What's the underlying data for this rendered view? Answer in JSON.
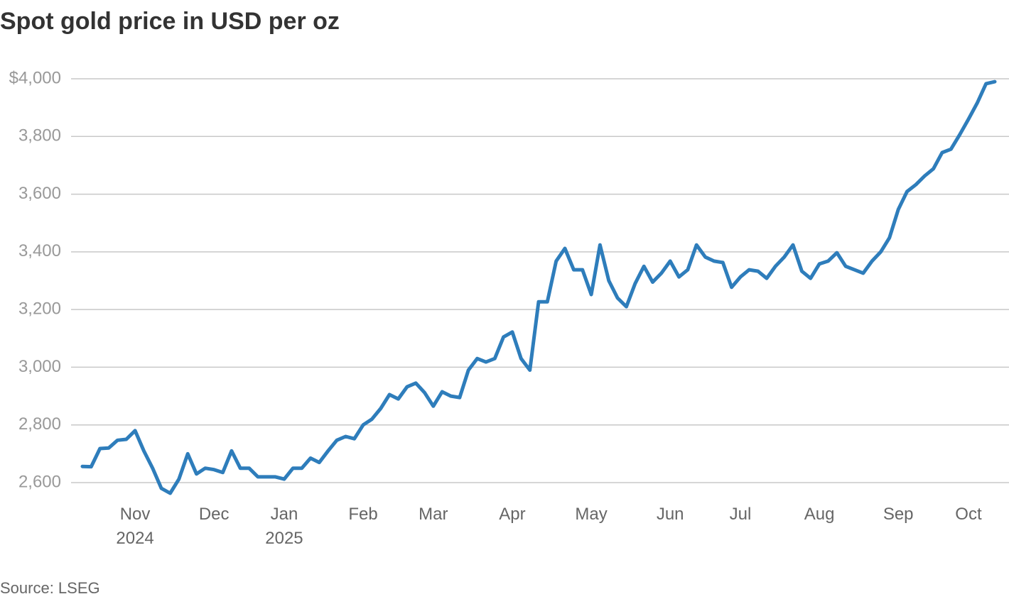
{
  "chart_data": {
    "type": "line",
    "title": "Spot gold price in USD per oz",
    "source": "Source: LSEG",
    "categories": [
      null,
      null,
      null,
      null,
      null,
      null,
      "Nov 2024",
      null,
      null,
      null,
      null,
      null,
      null,
      null,
      null,
      "Dec",
      null,
      null,
      null,
      null,
      null,
      null,
      null,
      "Jan 2025",
      null,
      null,
      null,
      null,
      null,
      null,
      null,
      null,
      "Feb",
      null,
      null,
      null,
      null,
      null,
      null,
      null,
      "Mar",
      null,
      null,
      null,
      null,
      null,
      null,
      null,
      null,
      "Apr",
      null,
      null,
      null,
      null,
      null,
      null,
      null,
      null,
      "May",
      null,
      null,
      null,
      null,
      null,
      null,
      null,
      null,
      "Jun",
      null,
      null,
      null,
      null,
      null,
      null,
      null,
      "Jul",
      null,
      null,
      null,
      null,
      null,
      null,
      null,
      null,
      "Aug",
      null,
      null,
      null,
      null,
      null,
      null,
      null,
      null,
      "Sep",
      null,
      null,
      null,
      null,
      null,
      null,
      null,
      "Oct",
      null,
      null,
      null
    ],
    "series": [
      {
        "name": "Spot gold",
        "color": "#2e7dbb",
        "values": [
          2656,
          2655,
          2718,
          2720,
          2747,
          2750,
          2780,
          2710,
          2650,
          2580,
          2563,
          2612,
          2700,
          2630,
          2650,
          2645,
          2635,
          2710,
          2650,
          2650,
          2620,
          2620,
          2620,
          2612,
          2650,
          2650,
          2685,
          2670,
          2710,
          2747,
          2760,
          2752,
          2800,
          2820,
          2857,
          2905,
          2890,
          2932,
          2945,
          2912,
          2865,
          2915,
          2900,
          2895,
          2990,
          3030,
          3018,
          3030,
          3105,
          3122,
          3030,
          2990,
          3227,
          3227,
          3368,
          3412,
          3338,
          3338,
          3252,
          3424,
          3300,
          3240,
          3210,
          3290,
          3350,
          3295,
          3326,
          3368,
          3313,
          3338,
          3424,
          3382,
          3368,
          3363,
          3277,
          3313,
          3338,
          3333,
          3308,
          3350,
          3382,
          3424,
          3333,
          3308,
          3358,
          3368,
          3397,
          3350,
          3338,
          3326,
          3368,
          3400,
          3449,
          3547,
          3609,
          3633,
          3663,
          3688,
          3744,
          3756,
          3806,
          3860,
          3916,
          3983,
          3990
        ]
      }
    ],
    "ylim": [
      2570,
      4060
    ],
    "yticks": [
      {
        "value": 2600,
        "label": "2,600"
      },
      {
        "value": 2800,
        "label": "2,800"
      },
      {
        "value": 3000,
        "label": "3,000"
      },
      {
        "value": 3200,
        "label": "3,200"
      },
      {
        "value": 3400,
        "label": "3,400"
      },
      {
        "value": 3600,
        "label": "3,600"
      },
      {
        "value": 3800,
        "label": "3,800"
      },
      {
        "value": 4000,
        "label": "$4,000"
      }
    ],
    "grid": true
  }
}
